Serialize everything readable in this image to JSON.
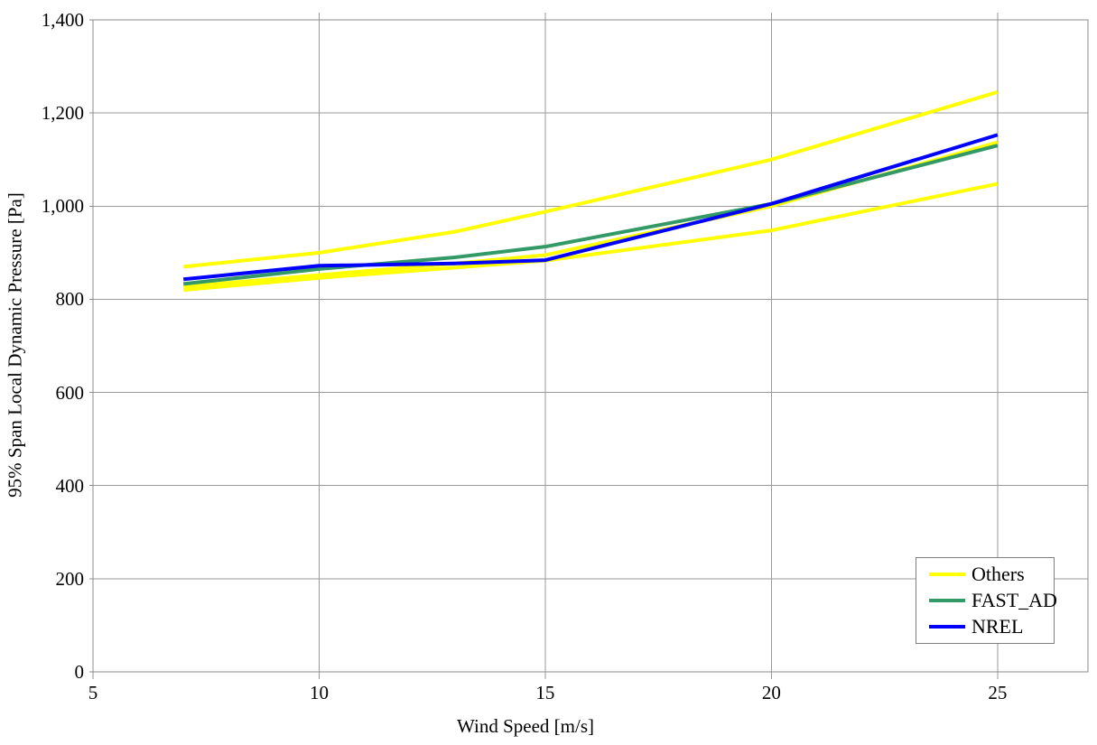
{
  "chart_data": {
    "type": "line",
    "title": "",
    "xlabel": "Wind Speed [m/s]",
    "ylabel": "95% Span Local Dynamic Pressure [Pa]",
    "xlim": [
      5,
      27
    ],
    "ylim": [
      0,
      1400
    ],
    "grid": true,
    "x": [
      7,
      10,
      13,
      15,
      20,
      25
    ],
    "series": [
      {
        "name": "Others",
        "color": "#ffff00",
        "values": [
          870,
          900,
          945,
          988,
          1100,
          1245
        ]
      },
      {
        "name": "Others",
        "color": "#ffff00",
        "values": [
          827,
          852,
          877,
          895,
          1000,
          1137
        ]
      },
      {
        "name": "Others",
        "color": "#ffff00",
        "values": [
          820,
          846,
          868,
          883,
          948,
          1048
        ]
      },
      {
        "name": "FAST_AD",
        "color": "#339966",
        "values": [
          833,
          865,
          890,
          913,
          1005,
          1130
        ]
      },
      {
        "name": "NREL",
        "color": "#0000ff",
        "values": [
          843,
          872,
          877,
          884,
          1005,
          1153
        ]
      }
    ],
    "xticks": [
      {
        "value": 5,
        "label": "5"
      },
      {
        "value": 10,
        "label": "10"
      },
      {
        "value": 15,
        "label": "15"
      },
      {
        "value": 20,
        "label": "20"
      },
      {
        "value": 25,
        "label": "25"
      }
    ],
    "yticks": [
      {
        "value": 0,
        "label": "0"
      },
      {
        "value": 200,
        "label": "200"
      },
      {
        "value": 400,
        "label": "400"
      },
      {
        "value": 600,
        "label": "600"
      },
      {
        "value": 800,
        "label": "800"
      },
      {
        "value": 1000,
        "label": "1,000"
      },
      {
        "value": 1200,
        "label": "1,200"
      },
      {
        "value": 1400,
        "label": "1,400"
      }
    ],
    "legend": {
      "position": "bottom-right",
      "entries": [
        {
          "label": "Others",
          "color": "#ffff00"
        },
        {
          "label": "FAST_AD",
          "color": "#339966"
        },
        {
          "label": "NREL",
          "color": "#0000ff"
        }
      ]
    },
    "colors": {
      "gridline": "#9a9a9a",
      "plot_border": "#8c8c8c",
      "background": "#ffffff",
      "text": "#000000"
    }
  }
}
